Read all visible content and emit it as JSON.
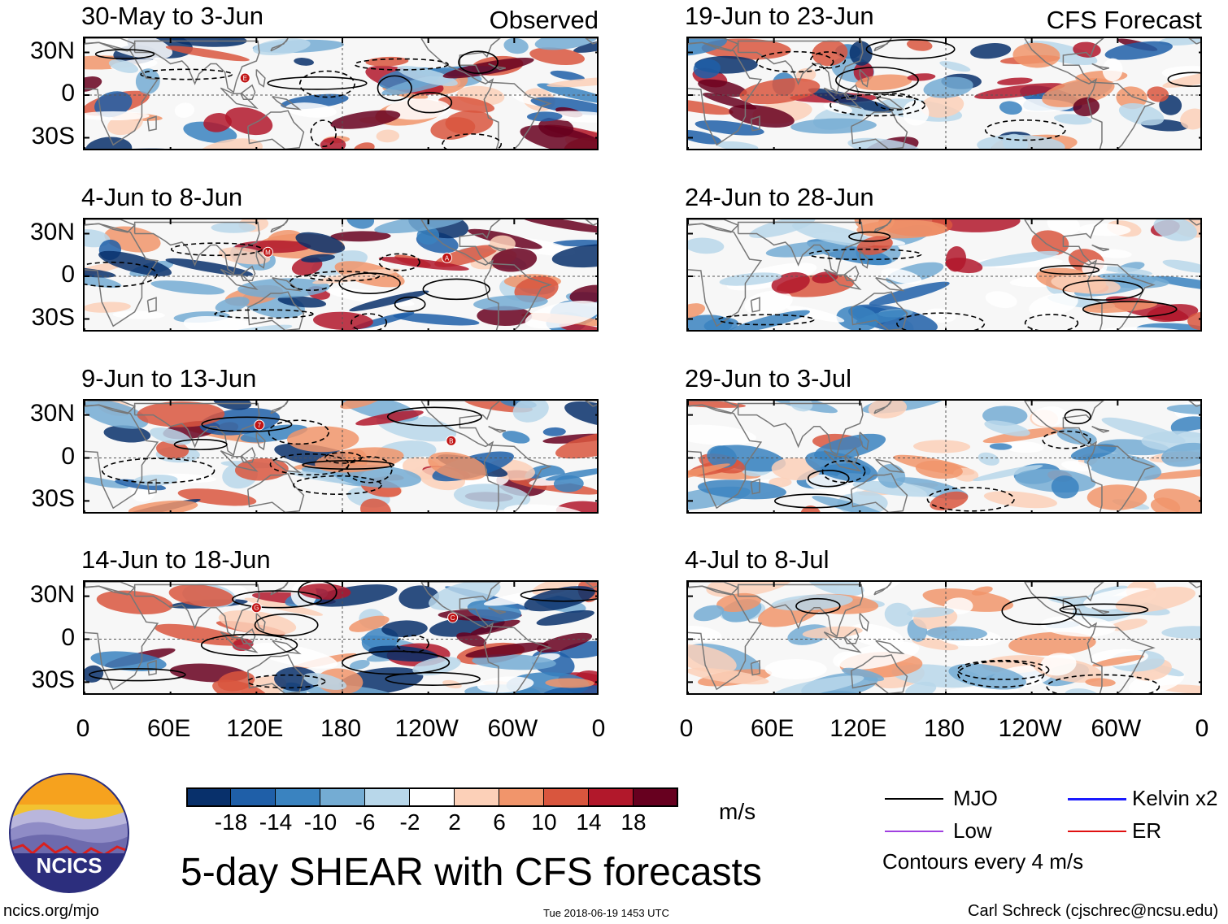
{
  "chart_data": {
    "type": "heatmap",
    "title": "5-day SHEAR with CFS forecasts",
    "units": "m/s",
    "x_ticks": [
      "0",
      "60E",
      "120E",
      "180",
      "120W",
      "60W",
      "0"
    ],
    "y_ticks": [
      "30N",
      "0",
      "30S"
    ],
    "column_titles": [
      "Observed",
      "CFS Forecast"
    ],
    "panels": [
      {
        "period": "30-May to 3-Jun",
        "source": "Observed",
        "storms": [
          {
            "label": "E",
            "lon": 112,
            "lat": 12
          }
        ]
      },
      {
        "period": "4-Jun to 8-Jun",
        "source": "Observed",
        "storms": [
          {
            "label": "M",
            "lon": 128,
            "lat": 17
          },
          {
            "label": "A",
            "lon": 253,
            "lat": 13
          }
        ]
      },
      {
        "period": "9-Jun to 13-Jun",
        "source": "Observed",
        "storms": [
          {
            "label": "7",
            "lon": 122,
            "lat": 23
          },
          {
            "label": "B",
            "lon": 256,
            "lat": 12
          }
        ]
      },
      {
        "period": "14-Jun to 18-Jun",
        "source": "Observed",
        "storms": [
          {
            "label": "G",
            "lon": 120,
            "lat": 22
          },
          {
            "label": "C",
            "lon": 257,
            "lat": 15
          }
        ]
      },
      {
        "period": "19-Jun to 23-Jun",
        "source": "CFS Forecast",
        "storms": []
      },
      {
        "period": "24-Jun to 28-Jun",
        "source": "CFS Forecast",
        "storms": []
      },
      {
        "period": "29-Jun to 3-Jul",
        "source": "CFS Forecast",
        "storms": []
      },
      {
        "period": "4-Jul to 8-Jul",
        "source": "CFS Forecast",
        "storms": []
      }
    ],
    "colorbar": {
      "levels": [
        "-18",
        "-14",
        "-10",
        "-6",
        "-2",
        "2",
        "6",
        "10",
        "14",
        "18"
      ],
      "colors": [
        "#08306b",
        "#1f5fa8",
        "#3a83c0",
        "#74acd3",
        "#b8d7ea",
        "#ffffff",
        "#fcd0b8",
        "#f1956b",
        "#d9563e",
        "#b2182b",
        "#67001f"
      ]
    },
    "legend": [
      {
        "label": "MJO",
        "color": "#000000"
      },
      {
        "label": "Kelvin x2",
        "color": "#1a1aff"
      },
      {
        "label": "Low",
        "color": "#a040e0"
      },
      {
        "label": "ER",
        "color": "#e01010"
      }
    ],
    "contour_note": "Contours every 4 m/s"
  },
  "logo": {
    "text": "NCICS"
  },
  "footer": {
    "url": "ncics.org/mjo",
    "timestamp": "Tue 2018-06-19 1453 UTC",
    "author": "Carl Schreck (cjschrec@ncsu.edu)"
  }
}
